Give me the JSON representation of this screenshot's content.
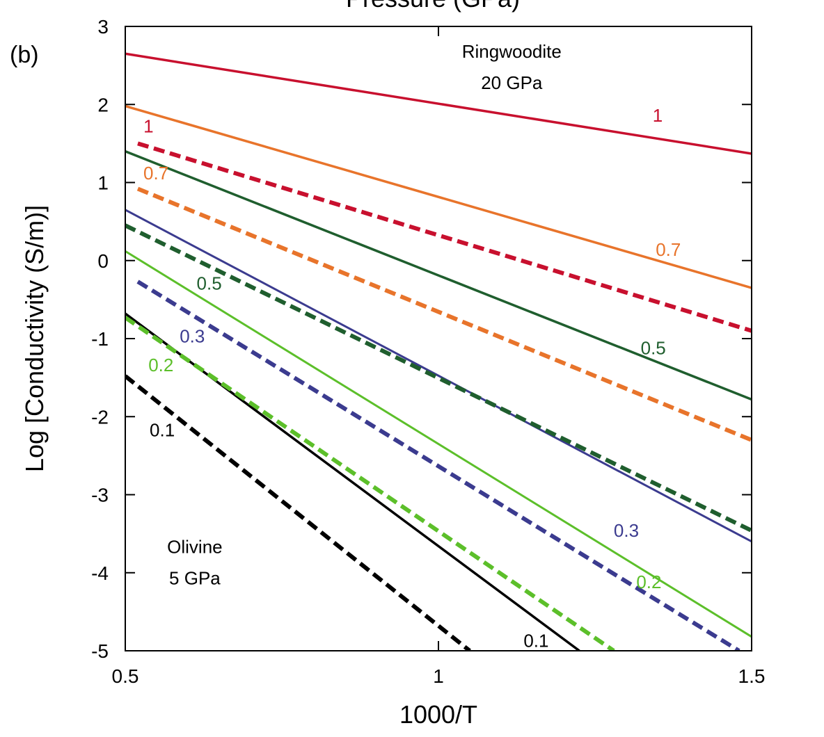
{
  "chart_data": {
    "type": "line",
    "panel_label": "(b)",
    "top_label": "Pressure (GPa)",
    "xlabel": "1000/T",
    "ylabel": "Log [Conductivity (S/m)]",
    "xlim": [
      0.5,
      1.5
    ],
    "ylim": [
      -5,
      3
    ],
    "xticks": [
      "0.5",
      "1",
      "1.5"
    ],
    "xtick_values": [
      0.5,
      1.0,
      1.5
    ],
    "yticks": [
      "3",
      "2",
      "1",
      "0",
      "-1",
      "-2",
      "-3",
      "-4",
      "-5"
    ],
    "ytick_values": [
      3,
      2,
      1,
      0,
      -1,
      -2,
      -3,
      -4,
      -5
    ],
    "grid": false,
    "series": [
      {
        "mineral": "Ringwoodite",
        "label": "1",
        "color": "#c8102e",
        "style": "solid",
        "width": 3.5,
        "x": [
          0.5,
          1.5
        ],
        "y": [
          2.65,
          1.37
        ]
      },
      {
        "mineral": "Ringwoodite",
        "label": "0.7",
        "color": "#e8742b",
        "style": "solid",
        "width": 3.5,
        "x": [
          0.5,
          1.5
        ],
        "y": [
          1.98,
          -0.35
        ]
      },
      {
        "mineral": "Ringwoodite",
        "label": "0.5",
        "color": "#1f5e2e",
        "style": "solid",
        "width": 3.5,
        "x": [
          0.5,
          1.5
        ],
        "y": [
          1.4,
          -1.78
        ]
      },
      {
        "mineral": "Ringwoodite",
        "label": "0.3",
        "color": "#3b3b8f",
        "style": "solid",
        "width": 3,
        "x": [
          0.5,
          1.5
        ],
        "y": [
          0.65,
          -3.6
        ]
      },
      {
        "mineral": "Ringwoodite",
        "label": "0.2",
        "color": "#5cbf2a",
        "style": "solid",
        "width": 3,
        "x": [
          0.5,
          1.5
        ],
        "y": [
          0.12,
          -4.82
        ]
      },
      {
        "mineral": "Ringwoodite",
        "label": "0.1",
        "color": "#000000",
        "style": "solid",
        "width": 3.5,
        "x": [
          0.5,
          1.225
        ],
        "y": [
          -0.68,
          -5.0
        ]
      },
      {
        "mineral": "Olivine",
        "label": "1",
        "color": "#c8102e",
        "style": "dashed",
        "width": 6,
        "x": [
          0.52,
          1.5
        ],
        "y": [
          1.5,
          -0.9
        ]
      },
      {
        "mineral": "Olivine",
        "label": "0.7",
        "color": "#e8742b",
        "style": "dashed",
        "width": 6,
        "x": [
          0.52,
          1.5
        ],
        "y": [
          0.92,
          -2.3
        ]
      },
      {
        "mineral": "Olivine",
        "label": "0.5",
        "color": "#1f5e2e",
        "style": "dashed",
        "width": 6,
        "x": [
          0.5,
          1.5
        ],
        "y": [
          0.45,
          -3.46
        ]
      },
      {
        "mineral": "Olivine",
        "label": "0.3",
        "color": "#3b3b8f",
        "style": "dashed",
        "width": 6,
        "x": [
          0.52,
          1.48
        ],
        "y": [
          -0.27,
          -5.0
        ]
      },
      {
        "mineral": "Olivine",
        "label": "0.2",
        "color": "#5cbf2a",
        "style": "dashed",
        "width": 6,
        "x": [
          0.5,
          1.28
        ],
        "y": [
          -0.73,
          -5.0
        ]
      },
      {
        "mineral": "Olivine",
        "label": "0.1",
        "color": "#000000",
        "style": "dashed",
        "width": 6,
        "x": [
          0.5,
          1.05
        ],
        "y": [
          -1.48,
          -5.0
        ]
      }
    ],
    "annotations": [
      {
        "text": "Ringwoodite",
        "x": 1.117,
        "y": 2.6,
        "color": "#000000"
      },
      {
        "text": "20 GPa",
        "x": 1.117,
        "y": 2.2,
        "color": "#000000"
      },
      {
        "text": "Olivine",
        "x": 0.611,
        "y": -3.75,
        "color": "#000000"
      },
      {
        "text": "5 GPa",
        "x": 0.611,
        "y": -4.15,
        "color": "#000000"
      },
      {
        "text": "1",
        "x": 1.35,
        "y": 1.78,
        "color": "#c8102e"
      },
      {
        "text": "0.7",
        "x": 1.367,
        "y": 0.06,
        "color": "#e8742b"
      },
      {
        "text": "0.5",
        "x": 1.343,
        "y": -1.2,
        "color": "#1f5e2e"
      },
      {
        "text": "0.3",
        "x": 1.3,
        "y": -3.54,
        "color": "#3b3b8f"
      },
      {
        "text": "0.2",
        "x": 1.336,
        "y": -4.2,
        "color": "#5cbf2a"
      },
      {
        "text": "0.1",
        "x": 1.156,
        "y": -4.95,
        "color": "#000000"
      },
      {
        "text": "1",
        "x": 0.537,
        "y": 1.64,
        "color": "#c8102e"
      },
      {
        "text": "0.7",
        "x": 0.549,
        "y": 1.04,
        "color": "#e8742b"
      },
      {
        "text": "0.5",
        "x": 0.634,
        "y": -0.37,
        "color": "#1f5e2e"
      },
      {
        "text": "0.3",
        "x": 0.607,
        "y": -1.05,
        "color": "#3b3b8f"
      },
      {
        "text": "0.2",
        "x": 0.557,
        "y": -1.42,
        "color": "#5cbf2a"
      },
      {
        "text": "0.1",
        "x": 0.559,
        "y": -2.25,
        "color": "#000000"
      }
    ]
  }
}
